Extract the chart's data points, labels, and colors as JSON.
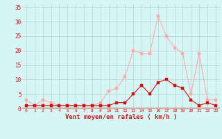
{
  "x": [
    0,
    1,
    2,
    3,
    4,
    5,
    6,
    7,
    8,
    9,
    10,
    11,
    12,
    13,
    14,
    15,
    16,
    17,
    18,
    19,
    20,
    21,
    22,
    23
  ],
  "rafales": [
    3,
    1,
    3,
    2,
    1,
    1,
    1,
    1,
    1,
    2,
    6,
    7,
    11,
    20,
    19,
    19,
    32,
    25,
    21,
    19,
    5,
    19,
    3,
    3
  ],
  "moyen": [
    1,
    1,
    1,
    1,
    1,
    1,
    1,
    1,
    1,
    1,
    1,
    2,
    2,
    5,
    8,
    5,
    9,
    10,
    8,
    7,
    3,
    1,
    2,
    1
  ],
  "color_rafales": "#ffaaaa",
  "color_moyen": "#cc1111",
  "background": "#d8f5f5",
  "grid_color": "#b0d0d0",
  "axis_color": "#cc1111",
  "text_color": "#cc1111",
  "xlabel": "Vent moyen/en rafales ( km/h )",
  "yticks": [
    0,
    5,
    10,
    15,
    20,
    25,
    30,
    35
  ],
  "xticks": [
    0,
    1,
    2,
    3,
    4,
    5,
    6,
    7,
    8,
    9,
    10,
    11,
    12,
    13,
    14,
    15,
    16,
    17,
    18,
    19,
    20,
    21,
    22,
    23
  ],
  "ylim": [
    0,
    36
  ],
  "xlim": [
    -0.5,
    23.5
  ],
  "marker": "s",
  "markersize": 2.5,
  "linewidth": 0.8
}
